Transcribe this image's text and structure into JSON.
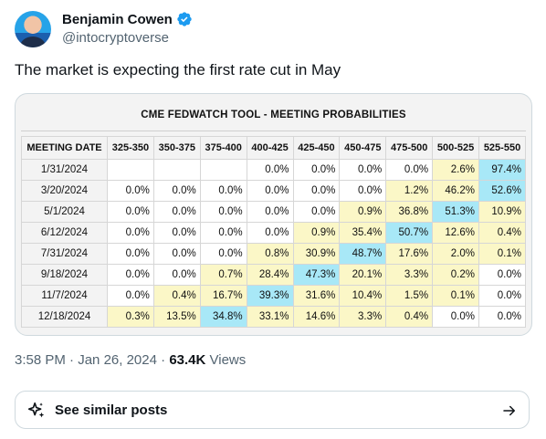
{
  "tweet": {
    "author_name": "Benjamin Cowen",
    "handle": "@intocryptoverse",
    "text": "The market is expecting the first rate cut in May",
    "time": "3:58 PM",
    "separator": "·",
    "date": "Jan 26, 2024",
    "views_count": "63.4K",
    "views_label": "Views"
  },
  "table": {
    "title": "CME FEDWATCH TOOL - MEETING PROBABILITIES",
    "headers": [
      "MEETING DATE",
      "325-350",
      "350-375",
      "375-400",
      "400-425",
      "425-450",
      "450-475",
      "475-500",
      "500-525",
      "525-550"
    ],
    "rows": [
      {
        "date": "1/31/2024",
        "cells": [
          "",
          "",
          "",
          "0.0%",
          "0.0%",
          "0.0%",
          "0.0%",
          "2.6%",
          "97.4%"
        ]
      },
      {
        "date": "3/20/2024",
        "cells": [
          "0.0%",
          "0.0%",
          "0.0%",
          "0.0%",
          "0.0%",
          "0.0%",
          "1.2%",
          "46.2%",
          "52.6%"
        ]
      },
      {
        "date": "5/1/2024",
        "cells": [
          "0.0%",
          "0.0%",
          "0.0%",
          "0.0%",
          "0.0%",
          "0.9%",
          "36.8%",
          "51.3%",
          "10.9%"
        ]
      },
      {
        "date": "6/12/2024",
        "cells": [
          "0.0%",
          "0.0%",
          "0.0%",
          "0.0%",
          "0.9%",
          "35.4%",
          "50.7%",
          "12.6%",
          "0.4%"
        ]
      },
      {
        "date": "7/31/2024",
        "cells": [
          "0.0%",
          "0.0%",
          "0.0%",
          "0.8%",
          "30.9%",
          "48.7%",
          "17.6%",
          "2.0%",
          "0.1%"
        ]
      },
      {
        "date": "9/18/2024",
        "cells": [
          "0.0%",
          "0.0%",
          "0.7%",
          "28.4%",
          "47.3%",
          "20.1%",
          "3.3%",
          "0.2%",
          "0.0%"
        ]
      },
      {
        "date": "11/7/2024",
        "cells": [
          "0.0%",
          "0.4%",
          "16.7%",
          "39.3%",
          "31.6%",
          "10.4%",
          "1.5%",
          "0.1%",
          "0.0%"
        ]
      },
      {
        "date": "12/18/2024",
        "cells": [
          "0.3%",
          "13.5%",
          "34.8%",
          "33.1%",
          "14.6%",
          "3.3%",
          "0.4%",
          "0.0%",
          "0.0%"
        ]
      }
    ],
    "highlight_color": "#a8e8f7",
    "mid_color": "#fbf7c7"
  },
  "similar": {
    "label": "See similar posts"
  },
  "icons": {
    "verified": "verified-badge-icon",
    "spark": "sparkle-icon",
    "arrow": "arrow-right-icon"
  },
  "colors": {
    "verified_blue": "#1d9bf0",
    "text_secondary": "#536471"
  }
}
